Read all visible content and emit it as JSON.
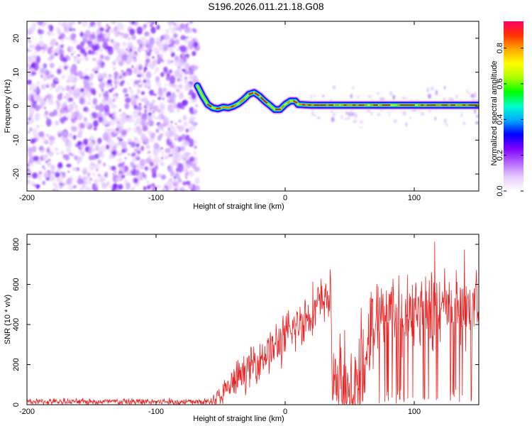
{
  "page": {
    "title": "S196.2026.011.21.18.G08"
  },
  "chart_data": [
    {
      "type": "heatmap",
      "id": "spectrogram",
      "xlabel": "Height of straight line (km)",
      "ylabel": "Frequency (Hz)",
      "xlim": [
        -200,
        150
      ],
      "ylim": [
        -25,
        25
      ],
      "xticks": [
        -200,
        -100,
        0,
        100
      ],
      "xtick_labels": [
        "-200",
        "-100",
        "0",
        "100"
      ],
      "yticks": [
        -20,
        -10,
        0,
        10,
        20
      ],
      "ytick_labels": [
        "-20",
        "-10",
        "0",
        "10",
        "20"
      ],
      "noise_region_x": [
        -200,
        -68
      ],
      "ridge": {
        "x": [
          -68,
          -64,
          -60,
          -56,
          -52,
          -48,
          -44,
          -40,
          -36,
          -32,
          -28,
          -24,
          -20,
          -16,
          -12,
          -8,
          -4,
          0,
          4,
          8,
          10,
          20,
          40,
          60,
          80,
          100,
          120,
          150
        ],
        "y": [
          6,
          3,
          0.5,
          -0.5,
          -0.8,
          -0.3,
          -0.5,
          0,
          0.8,
          2,
          3.5,
          4,
          3,
          1.5,
          0.3,
          -1,
          -1,
          0.5,
          1.5,
          1.5,
          0.5,
          0.3,
          0.3,
          0.3,
          0.3,
          0.3,
          0.3,
          0.3
        ]
      },
      "colorbar": {
        "label": "Normalized spectral amplitude",
        "range": [
          0,
          0.95
        ],
        "ticks": [
          0,
          0.2,
          0.4,
          0.6,
          0.8
        ],
        "tick_labels": [
          "0.0",
          "0.2",
          "0.4",
          "0.6",
          "0.8"
        ],
        "colors": [
          "#ffffff",
          "#e6ccff",
          "#b366ff",
          "#8000ff",
          "#0000ff",
          "#00aaff",
          "#00ffcc",
          "#00ff00",
          "#aaff00",
          "#ffff00",
          "#ffaa00",
          "#ff3300",
          "#ff0066"
        ]
      }
    },
    {
      "type": "line",
      "id": "snr",
      "xlabel": "Height of straight line (km)",
      "ylabel": "SNR (10 * v/v)",
      "xlim": [
        -200,
        150
      ],
      "ylim": [
        0,
        850
      ],
      "xticks": [
        -200,
        -100,
        0,
        100
      ],
      "xtick_labels": [
        "-200",
        "-100",
        "0",
        "100"
      ],
      "yticks": [
        0,
        200,
        400,
        600,
        800
      ],
      "ytick_labels": [
        "0",
        "200",
        "400",
        "600",
        "800"
      ],
      "color": "#ee2222",
      "envelope": {
        "x": [
          -200,
          -60,
          -50,
          -40,
          -30,
          -20,
          -10,
          0,
          10,
          20,
          30,
          35,
          37,
          45,
          50,
          55,
          60,
          65,
          70,
          75,
          80,
          90,
          100,
          110,
          120,
          130,
          140,
          150
        ],
        "base": [
          15,
          15,
          40,
          110,
          170,
          230,
          280,
          330,
          400,
          460,
          520,
          550,
          100,
          120,
          90,
          130,
          200,
          350,
          420,
          460,
          480,
          470,
          480,
          480,
          470,
          480,
          460,
          470
        ],
        "spread": [
          15,
          20,
          60,
          90,
          100,
          110,
          120,
          130,
          130,
          140,
          130,
          120,
          200,
          250,
          260,
          260,
          280,
          250,
          200,
          180,
          190,
          210,
          200,
          210,
          220,
          210,
          250,
          230
        ]
      },
      "dropouts_x": [
        37,
        40,
        48,
        53,
        60,
        73,
        77,
        80,
        83,
        86,
        89,
        92,
        95,
        99,
        108,
        118,
        128,
        135,
        144
      ]
    }
  ]
}
